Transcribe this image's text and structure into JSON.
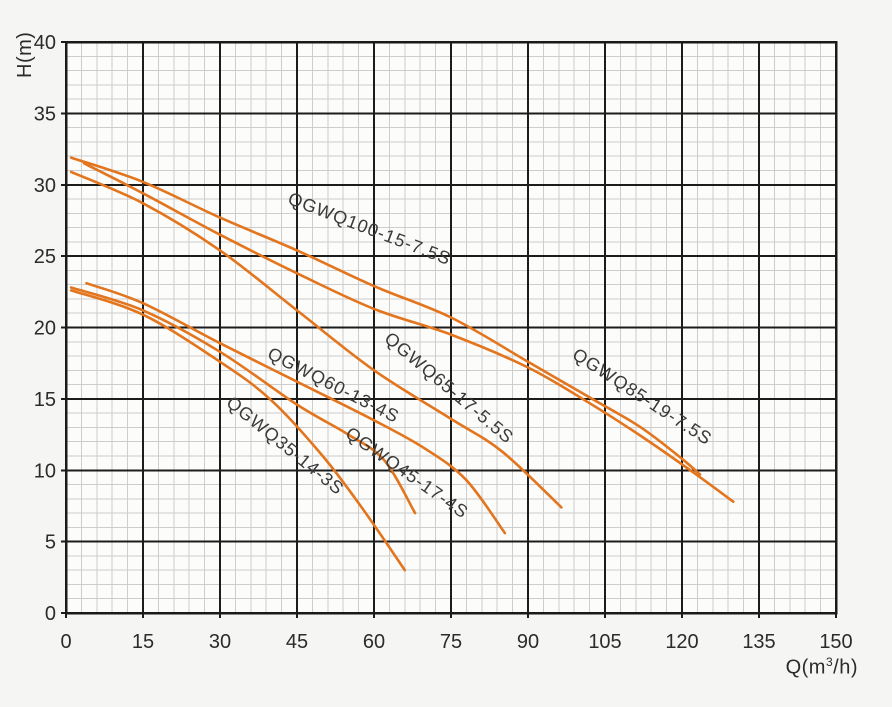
{
  "chart_data": {
    "type": "line",
    "title": "",
    "ylabel": "H(m)",
    "xlabel_parts": {
      "pre": "Q(m",
      "sup": "3",
      "post": "/h)"
    },
    "xlim": [
      0,
      150
    ],
    "ylim": [
      0,
      40
    ],
    "x_ticks": [
      0,
      15,
      30,
      45,
      60,
      75,
      90,
      105,
      120,
      135,
      150
    ],
    "y_ticks": [
      0,
      5,
      10,
      15,
      20,
      25,
      30,
      35,
      40
    ],
    "x_minor_step": 3,
    "y_minor_step": 1,
    "grid": {
      "major_on": true,
      "minor_on": true
    },
    "legend_position": "labels-on-curves",
    "colors": {
      "curve": "#e2751d",
      "grid_major": "#1c1c1c",
      "grid_minor": "#cdcdcd",
      "frame": "#1a1a1a",
      "text": "#2b2b2b",
      "curve_label_text": "#3a3a3a",
      "plot_background": "#fcfcfb"
    },
    "series": [
      {
        "name": "QGWQ100-15-7.5S",
        "points": [
          [
            1,
            31.9
          ],
          [
            15,
            30.2
          ],
          [
            30,
            27.7
          ],
          [
            45,
            25.4
          ],
          [
            60,
            22.9
          ],
          [
            75,
            20.7
          ],
          [
            90,
            17.6
          ],
          [
            102,
            15.1
          ],
          [
            112,
            13.0
          ],
          [
            120,
            10.8
          ],
          [
            123.5,
            9.7
          ]
        ],
        "label": {
          "text": "QGWQ100-15-7.5S",
          "q": 43.0,
          "h": 28.7,
          "angle_deg": 21
        }
      },
      {
        "name": "QGWQ85-19-7.5S",
        "points": [
          [
            3.5,
            31.5
          ],
          [
            15,
            29.4
          ],
          [
            30,
            26.5
          ],
          [
            45,
            23.8
          ],
          [
            60,
            21.3
          ],
          [
            75,
            19.5
          ],
          [
            90,
            17.2
          ],
          [
            102,
            14.7
          ],
          [
            112,
            12.4
          ],
          [
            122,
            9.9
          ],
          [
            130,
            7.8
          ]
        ],
        "label": {
          "text": "QGWQ85-19-7.5S",
          "q": 98.4,
          "h": 17.9,
          "angle_deg": 33
        }
      },
      {
        "name": "QGWQ65-17-5.5S",
        "points": [
          [
            1,
            30.9
          ],
          [
            15,
            28.7
          ],
          [
            30,
            25.4
          ],
          [
            45,
            21.2
          ],
          [
            60,
            17.0
          ],
          [
            75,
            13.6
          ],
          [
            85,
            11.3
          ],
          [
            96.5,
            7.4
          ]
        ],
        "label": {
          "text": "QGWQ65-17-5.5S",
          "q": 61.8,
          "h": 19.1,
          "angle_deg": 40
        }
      },
      {
        "name": "QGWQ60-13-4S",
        "points": [
          [
            4,
            23.1
          ],
          [
            15,
            21.7
          ],
          [
            30,
            18.9
          ],
          [
            45,
            16.2
          ],
          [
            60,
            13.5
          ],
          [
            70,
            11.5
          ],
          [
            78,
            9.3
          ],
          [
            85.5,
            5.6
          ]
        ],
        "label": {
          "text": "QGWQ60-13-4S",
          "q": 39.0,
          "h": 17.9,
          "angle_deg": 27
        }
      },
      {
        "name": "QGWQ45-17-4S",
        "points": [
          [
            1,
            22.8
          ],
          [
            15,
            21.2
          ],
          [
            30,
            18.3
          ],
          [
            45,
            14.6
          ],
          [
            55,
            12.5
          ],
          [
            62,
            10.7
          ],
          [
            68,
            7.0
          ]
        ],
        "label": {
          "text": "QGWQ45-17-4S",
          "q": 54.2,
          "h": 12.4,
          "angle_deg": 35
        }
      },
      {
        "name": "QGWQ35-14-3S",
        "points": [
          [
            1,
            22.6
          ],
          [
            15,
            20.9
          ],
          [
            30,
            17.6
          ],
          [
            40,
            14.9
          ],
          [
            50,
            11.0
          ],
          [
            58,
            7.2
          ],
          [
            66,
            3.0
          ]
        ],
        "label": {
          "text": "QGWQ35-14-3S",
          "q": 31.0,
          "h": 14.6,
          "angle_deg": 39
        }
      }
    ]
  }
}
